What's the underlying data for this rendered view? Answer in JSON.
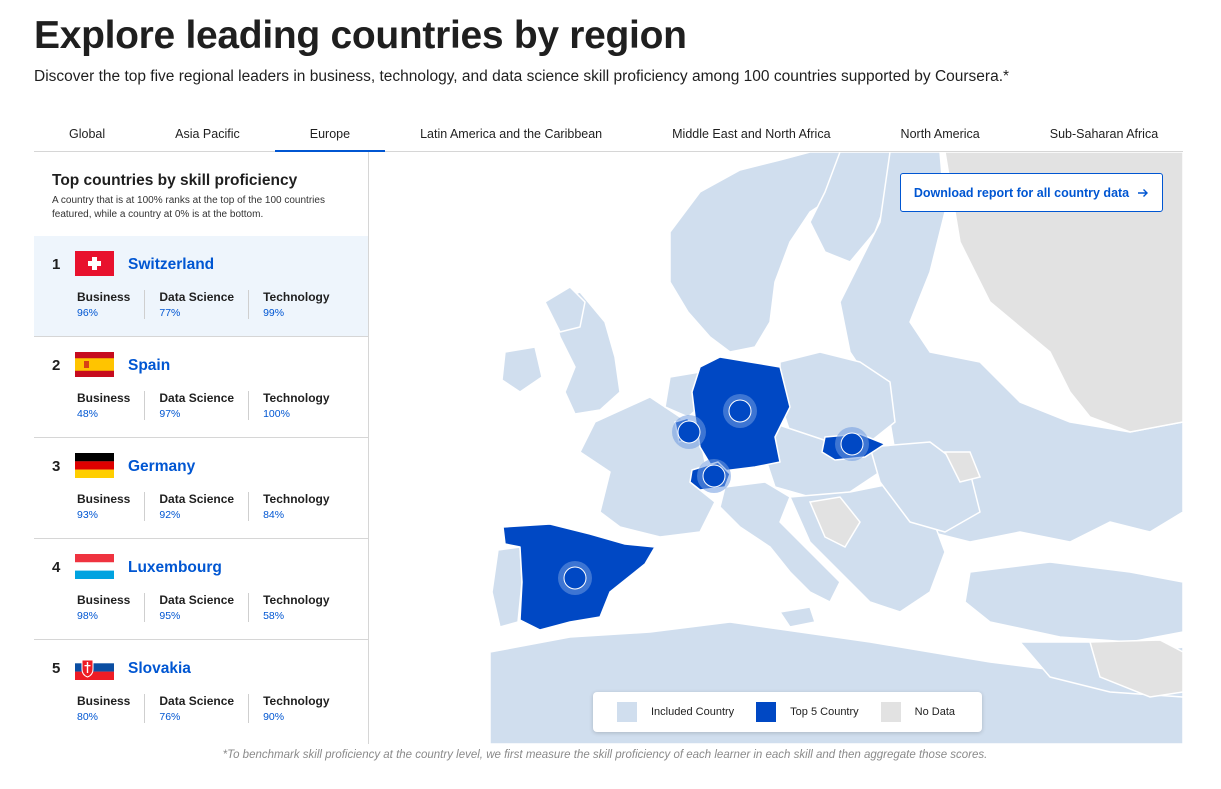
{
  "header": {
    "title": "Explore leading countries by region",
    "subtitle": "Discover the top five regional leaders in business, technology, and data science skill proficiency among 100 countries supported by Coursera.*"
  },
  "tabs": [
    {
      "label": "Global",
      "active": false
    },
    {
      "label": "Asia Pacific",
      "active": false
    },
    {
      "label": "Europe",
      "active": true
    },
    {
      "label": "Latin America and the Caribbean",
      "active": false
    },
    {
      "label": "Middle East and North Africa",
      "active": false
    },
    {
      "label": "North America",
      "active": false
    },
    {
      "label": "Sub-Saharan Africa",
      "active": false
    }
  ],
  "panel": {
    "heading": "Top countries by skill proficiency",
    "description": "A country that is at 100% ranks at the top of the 100 countries featured, while a country at 0% is at the bottom."
  },
  "countries": [
    {
      "rank": "1",
      "name": "Switzerland",
      "flag": "switzerland-flag",
      "metrics": [
        {
          "label": "Business",
          "value": "96%"
        },
        {
          "label": "Data Science",
          "value": "77%"
        },
        {
          "label": "Technology",
          "value": "99%"
        }
      ]
    },
    {
      "rank": "2",
      "name": "Spain",
      "flag": "spain-flag",
      "metrics": [
        {
          "label": "Business",
          "value": "48%"
        },
        {
          "label": "Data Science",
          "value": "97%"
        },
        {
          "label": "Technology",
          "value": "100%"
        }
      ]
    },
    {
      "rank": "3",
      "name": "Germany",
      "flag": "germany-flag",
      "metrics": [
        {
          "label": "Business",
          "value": "93%"
        },
        {
          "label": "Data Science",
          "value": "92%"
        },
        {
          "label": "Technology",
          "value": "84%"
        }
      ]
    },
    {
      "rank": "4",
      "name": "Luxembourg",
      "flag": "luxembourg-flag",
      "metrics": [
        {
          "label": "Business",
          "value": "98%"
        },
        {
          "label": "Data Science",
          "value": "95%"
        },
        {
          "label": "Technology",
          "value": "58%"
        }
      ]
    },
    {
      "rank": "5",
      "name": "Slovakia",
      "flag": "slovakia-flag",
      "metrics": [
        {
          "label": "Business",
          "value": "80%"
        },
        {
          "label": "Data Science",
          "value": "76%"
        },
        {
          "label": "Technology",
          "value": "90%"
        }
      ]
    }
  ],
  "map": {
    "download_label": "Download report for all country data",
    "download_icon": "arrow-right-icon",
    "legend": [
      {
        "label": "Included Country",
        "color": "#d0deee"
      },
      {
        "label": "Top 5 Country",
        "color": "#0048c4"
      },
      {
        "label": "No Data",
        "color": "#e2e2e2"
      }
    ]
  },
  "footnote": "*To benchmark skill proficiency at the country level, we first measure the skill proficiency of each learner in each skill and then aggregate those scores.",
  "colors": {
    "accent": "#0056d2",
    "included": "#d0deee",
    "top5": "#0048c4",
    "nodata": "#e2e2e2"
  }
}
